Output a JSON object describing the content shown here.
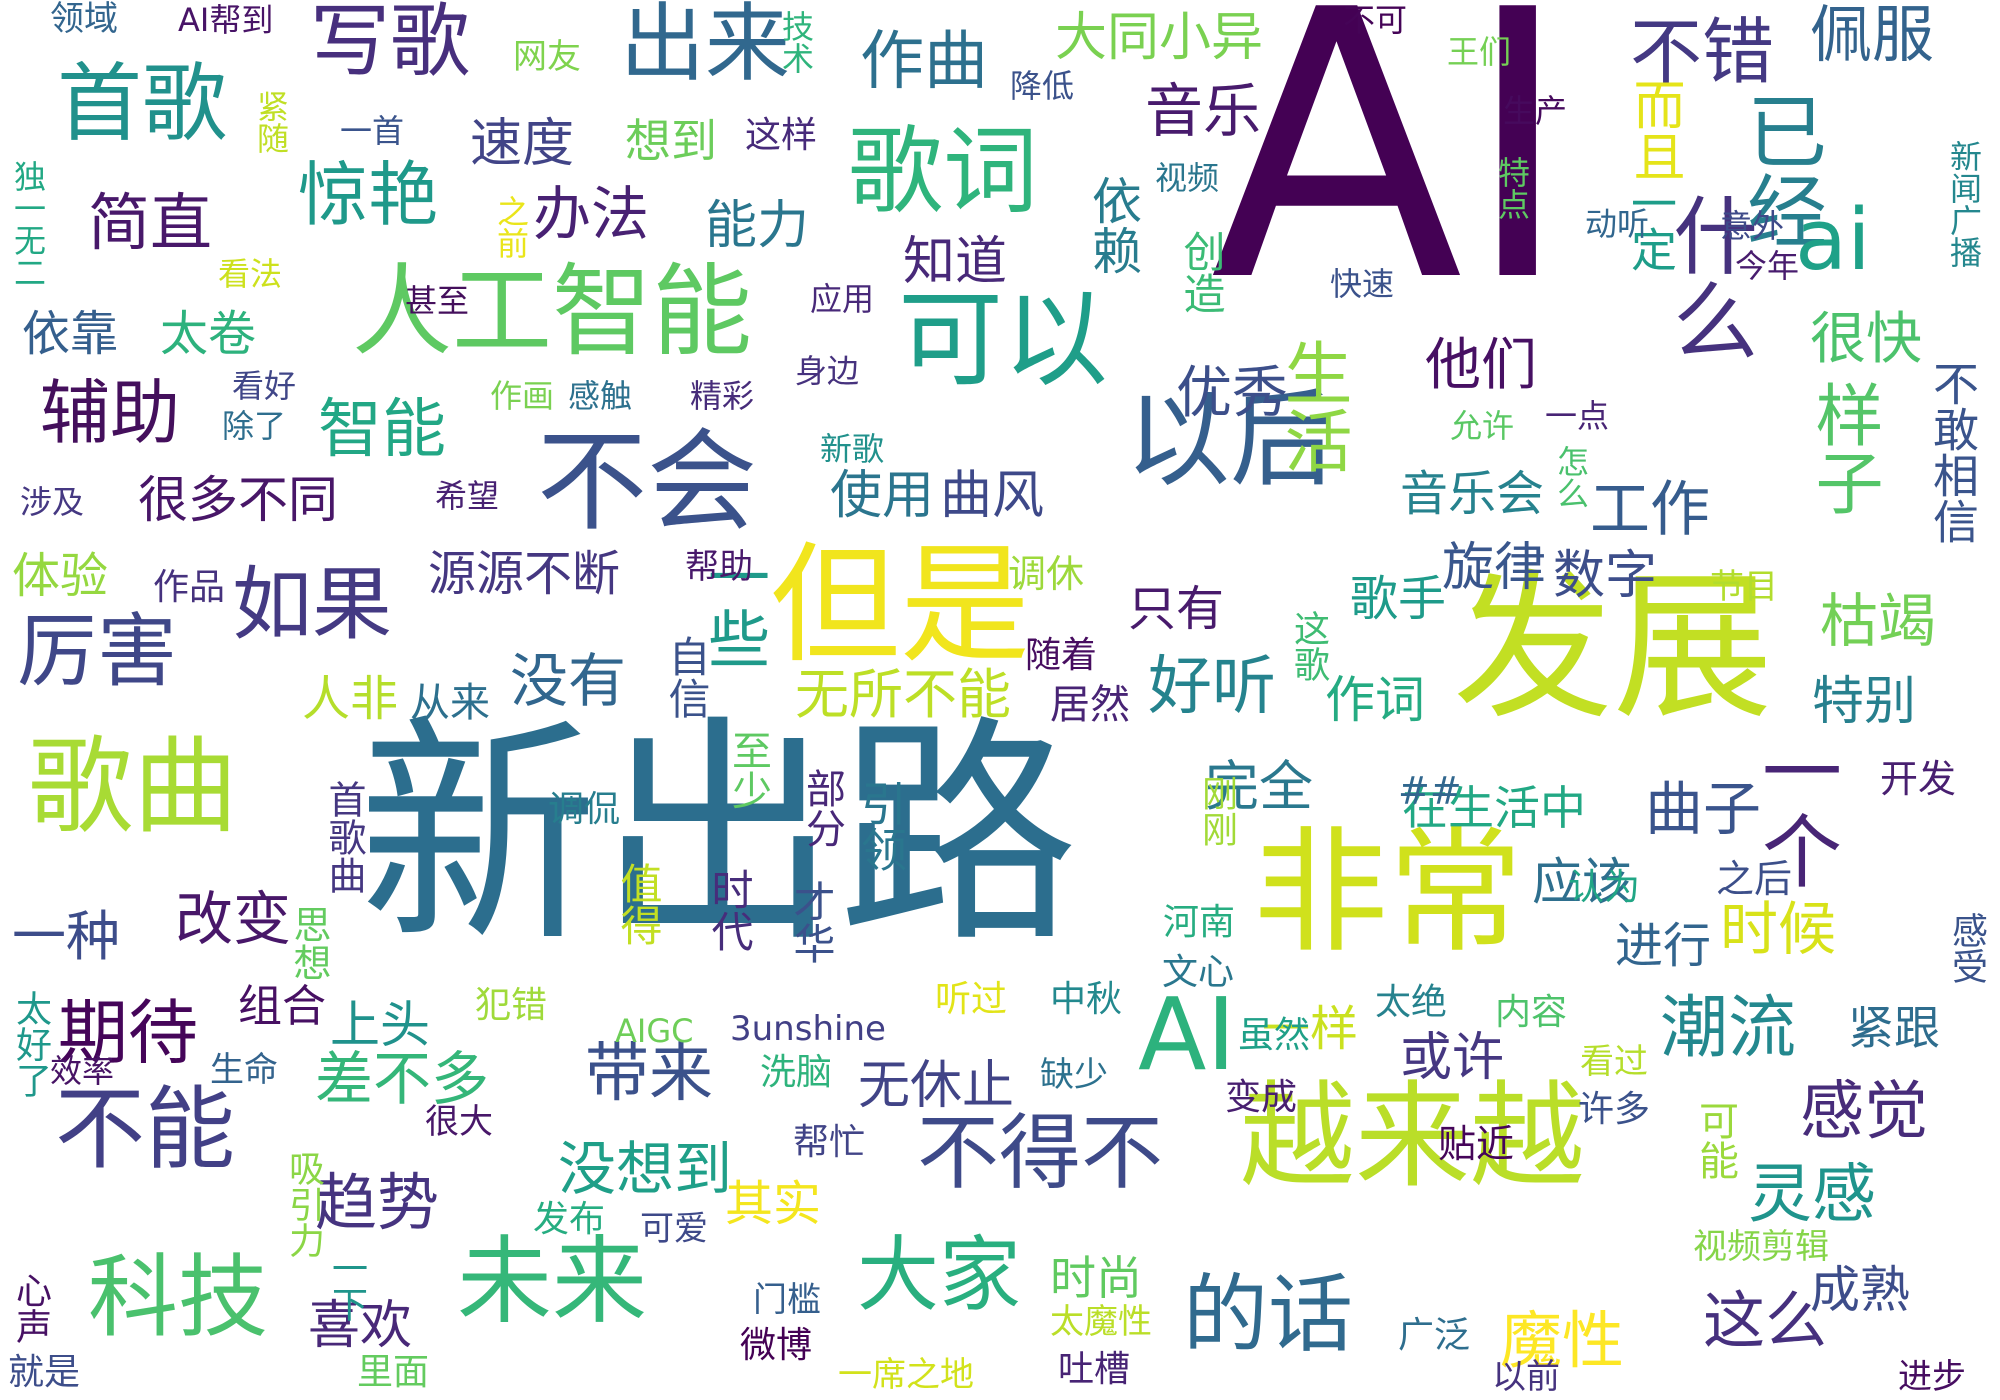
{
  "cloud": {
    "words": [
      {
        "text": "AI",
        "color": "#440154"
      },
      {
        "text": "新出路",
        "color": "#2c6e8e"
      },
      {
        "text": "发展",
        "color": "#c2df23"
      },
      {
        "text": "但是",
        "color": "#f1e51d"
      },
      {
        "text": "非常",
        "color": "#d0e11c"
      },
      {
        "text": "越来越",
        "color": "#bade28"
      },
      {
        "text": "人工智能",
        "color": "#5ec962"
      },
      {
        "text": "歌曲",
        "color": "#a8db34"
      },
      {
        "text": "可以",
        "color": "#1f9e89"
      },
      {
        "text": "不会",
        "color": "#3b528b"
      },
      {
        "text": "以后",
        "color": "#355f8d"
      },
      {
        "text": "歌词",
        "color": "#2fb47c"
      },
      {
        "text": "什么",
        "color": "#46327e"
      },
      {
        "text": "出来",
        "color": "#31688e"
      },
      {
        "text": "首歌",
        "color": "#21918c"
      },
      {
        "text": "写歌",
        "color": "#472f7d"
      },
      {
        "text": "不错",
        "color": "#443983"
      },
      {
        "text": "已经",
        "color": "#277f8e"
      },
      {
        "text": "ai",
        "color": "#1fa188"
      },
      {
        "text": "AI",
        "color": "#2db27d"
      },
      {
        "text": "一个",
        "color": "#482576"
      },
      {
        "text": "未来",
        "color": "#35b779"
      },
      {
        "text": "科技",
        "color": "#4ac16d"
      },
      {
        "text": "大家",
        "color": "#29af7f"
      },
      {
        "text": "不得不",
        "color": "#3e4a89"
      },
      {
        "text": "的话",
        "color": "#306a8e"
      },
      {
        "text": "不能",
        "color": "#424086"
      },
      {
        "text": "期待",
        "color": "#450559"
      },
      {
        "text": "厉害",
        "color": "#3f4788"
      },
      {
        "text": "如果",
        "color": "#443a83"
      },
      {
        "text": "辅助",
        "color": "#440f5c"
      },
      {
        "text": "惊艳",
        "color": "#1f998a"
      },
      {
        "text": "作曲",
        "color": "#2d708e"
      },
      {
        "text": "佩服",
        "color": "#33638d"
      },
      {
        "text": "音乐",
        "color": "#481b6d"
      },
      {
        "text": "简直",
        "color": "#48186a"
      },
      {
        "text": "办法",
        "color": "#482173"
      },
      {
        "text": "速度",
        "color": "#414487"
      },
      {
        "text": "大同小异",
        "color": "#7ad151"
      },
      {
        "text": "想到",
        "color": "#6ccd5a"
      },
      {
        "text": "这样",
        "color": "#472a7a"
      },
      {
        "text": "能力",
        "color": "#2a768e"
      },
      {
        "text": "智能",
        "color": "#22a785"
      },
      {
        "text": "优秀",
        "color": "#3c4f8a"
      },
      {
        "text": "知道",
        "color": "#482979"
      },
      {
        "text": "依赖",
        "color": "#287c8e"
      },
      {
        "text": "创造",
        "color": "#3bbb75"
      },
      {
        "text": "生活",
        "color": "#8fd744"
      },
      {
        "text": "而且",
        "color": "#e5e419"
      },
      {
        "text": "一定",
        "color": "#1e9d89"
      },
      {
        "text": "很快",
        "color": "#4cc26c"
      },
      {
        "text": "样子",
        "color": "#54c568"
      },
      {
        "text": "工作",
        "color": "#365c8d"
      },
      {
        "text": "不敢相信",
        "color": "#3a548c"
      },
      {
        "text": "他们",
        "color": "#471063"
      },
      {
        "text": "使用",
        "color": "#2b758e"
      },
      {
        "text": "曲风",
        "color": "#3e4989"
      },
      {
        "text": "音乐会",
        "color": "#26828e"
      },
      {
        "text": "旋律",
        "color": "#39568c"
      },
      {
        "text": "数字",
        "color": "#3d4e8a"
      },
      {
        "text": "很多不同",
        "color": "#481668"
      },
      {
        "text": "源源不断",
        "color": "#453781"
      },
      {
        "text": "体验",
        "color": "#95d840"
      },
      {
        "text": "没有",
        "color": "#31668e"
      },
      {
        "text": "好听",
        "color": "#25838e"
      },
      {
        "text": "无所不能",
        "color": "#bddf26"
      },
      {
        "text": "只有",
        "color": "#481a6c"
      },
      {
        "text": "歌手",
        "color": "#1e9b8a"
      },
      {
        "text": "枯竭",
        "color": "#73d056"
      },
      {
        "text": "特别",
        "color": "#27808e"
      },
      {
        "text": "完全",
        "color": "#2a788e"
      },
      {
        "text": "在生活中",
        "color": "#22a884"
      },
      {
        "text": "曲子",
        "color": "#3a548c"
      },
      {
        "text": "应该",
        "color": "#2e6f8e"
      },
      {
        "text": "进行",
        "color": "#32658e"
      },
      {
        "text": "时候",
        "color": "#d8e219"
      },
      {
        "text": "潮流",
        "color": "#23888e"
      },
      {
        "text": "紧跟",
        "color": "#2e6d8e"
      },
      {
        "text": "感觉",
        "color": "#472c7a"
      },
      {
        "text": "灵感",
        "color": "#1f948c"
      },
      {
        "text": "或许",
        "color": "#453781"
      },
      {
        "text": "带来",
        "color": "#3b518b"
      },
      {
        "text": "差不多",
        "color": "#34b679"
      },
      {
        "text": "无休止",
        "color": "#414487"
      },
      {
        "text": "趋势",
        "color": "#463480"
      },
      {
        "text": "没想到",
        "color": "#1f9f88"
      },
      {
        "text": "一样",
        "color": "#cae11f"
      },
      {
        "text": "时尚",
        "color": "#60ca60"
      },
      {
        "text": "喜欢",
        "color": "#482878"
      },
      {
        "text": "魔性",
        "color": "#fde725"
      },
      {
        "text": "这么",
        "color": "#46307e"
      },
      {
        "text": "成熟",
        "color": "#3d4d8a"
      },
      {
        "text": "依靠",
        "color": "#355f8d"
      },
      {
        "text": "太卷",
        "color": "#2db27d"
      },
      {
        "text": "改变",
        "color": "#481769"
      },
      {
        "text": "一种",
        "color": "#3d4d8a"
      },
      {
        "text": "上头",
        "color": "#20928c"
      },
      {
        "text": "组合",
        "color": "#471063"
      },
      {
        "text": "人非",
        "color": "#b5de2b"
      },
      {
        "text": "从来",
        "color": "#2d708e"
      },
      {
        "text": "居然",
        "color": "#482475"
      },
      {
        "text": "作词",
        "color": "#25ab82"
      },
      {
        "text": "自信",
        "color": "#3b528b"
      },
      {
        "text": "一些",
        "color": "#1f9a8a"
      },
      {
        "text": "引领",
        "color": "#2a768e"
      },
      {
        "text": "作品",
        "color": "#46327e"
      },
      {
        "text": "帮助",
        "color": "#48196b"
      },
      {
        "text": "调休",
        "color": "#9dd93b"
      },
      {
        "text": "随着",
        "color": "#470d60"
      },
      {
        "text": "这歌",
        "color": "#3fbc73"
      },
      {
        "text": "节目",
        "color": "#b2dd2d"
      },
      {
        "text": "开发",
        "color": "#481f70"
      },
      {
        "text": "认为",
        "color": "#21a685"
      },
      {
        "text": "之后",
        "color": "#3c4f8a"
      },
      {
        "text": "感受",
        "color": "#3a538b"
      },
      {
        "text": "##",
        "color": "#31678e"
      },
      {
        "text": "部分",
        "color": "#482878"
      },
      {
        "text": "至少",
        "color": "#5ec962"
      },
      {
        "text": "刚刚",
        "color": "#a2da37"
      },
      {
        "text": "首歌曲",
        "color": "#453781"
      },
      {
        "text": "调侃",
        "color": "#277e8e"
      },
      {
        "text": "时代",
        "color": "#472d7b"
      },
      {
        "text": "才华",
        "color": "#3b518b"
      },
      {
        "text": "值得",
        "color": "#c2df23"
      },
      {
        "text": "思想",
        "color": "#63cb5f"
      },
      {
        "text": "AIGC",
        "color": "#6ece58"
      },
      {
        "text": "3unshine",
        "color": "#424086"
      },
      {
        "text": "犯错",
        "color": "#9fda3a"
      },
      {
        "text": "听过",
        "color": "#e2e418"
      },
      {
        "text": "河南",
        "color": "#27ad81"
      },
      {
        "text": "文心",
        "color": "#2a778e"
      },
      {
        "text": "中秋",
        "color": "#23898e"
      },
      {
        "text": "太绝",
        "color": "#26828e"
      },
      {
        "text": "虽然",
        "color": "#1fa088"
      },
      {
        "text": "内容",
        "color": "#4ec36b"
      },
      {
        "text": "太好了",
        "color": "#1f988b"
      },
      {
        "text": "生命",
        "color": "#33638d"
      },
      {
        "text": "效率",
        "color": "#471365"
      },
      {
        "text": "洗脑",
        "color": "#2eb37c"
      },
      {
        "text": "缺少",
        "color": "#2c718e"
      },
      {
        "text": "变成",
        "color": "#481f70"
      },
      {
        "text": "许多",
        "color": "#3b528b"
      },
      {
        "text": "看过",
        "color": "#b5de2b"
      },
      {
        "text": "贴近",
        "color": "#450559"
      },
      {
        "text": "可能",
        "color": "#9bd93c"
      },
      {
        "text": "很大",
        "color": "#481769"
      },
      {
        "text": "帮忙",
        "color": "#414487"
      },
      {
        "text": "吸引力",
        "color": "#8bd646"
      },
      {
        "text": "其实",
        "color": "#f4e61e"
      },
      {
        "text": "发布",
        "color": "#26ad81"
      },
      {
        "text": "可爱",
        "color": "#3e4989"
      },
      {
        "text": "一下",
        "color": "#1f958b"
      },
      {
        "text": "心声",
        "color": "#471164"
      },
      {
        "text": "门槛",
        "color": "#355f8d"
      },
      {
        "text": "视频剪辑",
        "color": "#86d549"
      },
      {
        "text": "太魔性",
        "color": "#bade28"
      },
      {
        "text": "广泛",
        "color": "#2e6e8e"
      },
      {
        "text": "微博",
        "color": "#440154"
      },
      {
        "text": "一席之地",
        "color": "#d2e21b"
      },
      {
        "text": "吐槽",
        "color": "#482475"
      },
      {
        "text": "以前",
        "color": "#46337f"
      },
      {
        "text": "进步",
        "color": "#470e61"
      },
      {
        "text": "就是",
        "color": "#3d4e8a"
      },
      {
        "text": "里面",
        "color": "#63cb5f"
      },
      {
        "text": "领域",
        "color": "#32658e"
      },
      {
        "text": "AI帮到",
        "color": "#481467"
      },
      {
        "text": "网友",
        "color": "#7fd34e"
      },
      {
        "text": "技术",
        "color": "#2fb47c"
      },
      {
        "text": "降低",
        "color": "#3b528b"
      },
      {
        "text": "不可",
        "color": "#450457"
      },
      {
        "text": "王们",
        "color": "#75d054"
      },
      {
        "text": "紧随",
        "color": "#c0df25"
      },
      {
        "text": "一首",
        "color": "#3a548c"
      },
      {
        "text": "独一无二",
        "color": "#22a884"
      },
      {
        "text": "之前",
        "color": "#eae51a"
      },
      {
        "text": "看法",
        "color": "#cde11d"
      },
      {
        "text": "甚至",
        "color": "#440f5c"
      },
      {
        "text": "应用",
        "color": "#482979"
      },
      {
        "text": "视频",
        "color": "#2a768e"
      },
      {
        "text": "特点",
        "color": "#5ec962"
      },
      {
        "text": "意外",
        "color": "#3e4a89"
      },
      {
        "text": "动听",
        "color": "#31668e"
      },
      {
        "text": "今年",
        "color": "#481c6e"
      },
      {
        "text": "新闻广播",
        "color": "#24878e"
      },
      {
        "text": "快速",
        "color": "#3b528b"
      },
      {
        "text": "生产",
        "color": "#460a5d"
      },
      {
        "text": "作画",
        "color": "#7ad151"
      },
      {
        "text": "感触",
        "color": "#2d718e"
      },
      {
        "text": "精彩",
        "color": "#472c7a"
      },
      {
        "text": "身边",
        "color": "#46327e"
      },
      {
        "text": "看好",
        "color": "#404688"
      },
      {
        "text": "除了",
        "color": "#2e6e8e"
      },
      {
        "text": "允许",
        "color": "#5ac864"
      },
      {
        "text": "一点",
        "color": "#482475"
      },
      {
        "text": "新歌",
        "color": "#21918c"
      },
      {
        "text": "怎么",
        "color": "#4ac16d"
      },
      {
        "text": "希望",
        "color": "#482173"
      },
      {
        "text": "涉及",
        "color": "#453882"
      }
    ]
  }
}
